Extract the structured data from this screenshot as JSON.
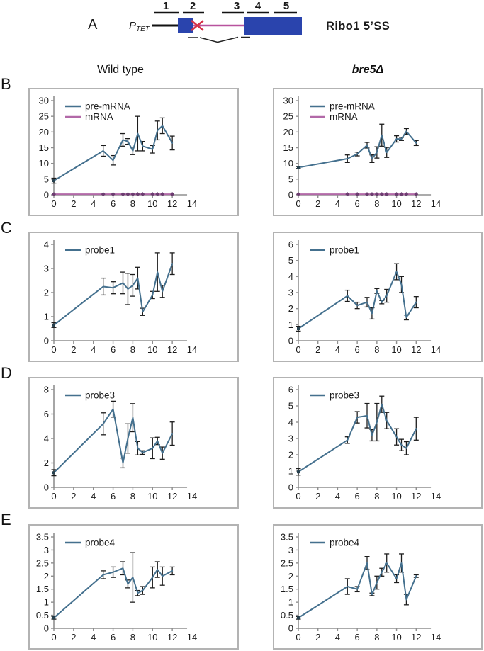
{
  "panel_a": {
    "label": "A",
    "promoter": {
      "main": "P",
      "sub": "TET"
    },
    "probes": [
      "1",
      "2",
      "3",
      "4",
      "5"
    ],
    "gene_label": "Ribo1 5’SS"
  },
  "columns": {
    "left": "Wild type",
    "right": "bre5Δ"
  },
  "panel_rows": [
    "B",
    "C",
    "D",
    "E"
  ],
  "colors": {
    "series_blue": "#44708e",
    "series_purple": "#b269a8",
    "marker_purple": "#6c3c70",
    "marker_dark": "#27414f",
    "axis_gray": "#8f8f8f",
    "error_black": "#1c1c1c",
    "exon_blue": "#2a44ad",
    "intron_magenta": "#b8529e",
    "cross_red": "#d63248",
    "box_border": "#b3b3b3",
    "text_dark": "#1a1a1a"
  },
  "chart_data": [
    {
      "type": "line",
      "panel": "B",
      "genotype": "Wild type",
      "x": [
        0,
        5,
        6,
        7,
        7.5,
        8,
        8.5,
        9,
        10,
        10.5,
        11,
        12
      ],
      "series": [
        {
          "name": "pre-mRNA",
          "color_key": "series_blue",
          "marker": "start",
          "values": [
            4.5,
            14,
            11,
            17.5,
            17,
            14,
            19.5,
            15.5,
            14.5,
            20.5,
            22,
            16.5
          ],
          "errors": [
            0.8,
            1.7,
            1.5,
            2.0,
            0.9,
            1.2,
            5.5,
            1.5,
            1.2,
            3.0,
            2.5,
            2.2
          ]
        },
        {
          "name": "mRNA",
          "color_key": "series_purple",
          "marker": "diamond",
          "values": [
            0.2,
            0.2,
            0.2,
            0.2,
            0.2,
            0.2,
            0.2,
            0.2,
            0.2,
            0.2,
            0.2,
            0.2
          ],
          "errors": [
            0,
            0,
            0,
            0,
            0,
            0,
            0,
            0,
            0,
            0,
            0,
            0
          ]
        }
      ],
      "xlim": [
        0,
        14
      ],
      "ylim": [
        0,
        30
      ],
      "xticks": [
        0,
        2,
        4,
        6,
        8,
        10,
        12,
        14
      ],
      "yticks": [
        0,
        5,
        10,
        15,
        20,
        25,
        30
      ],
      "legend_position": "top-left",
      "grid": false
    },
    {
      "type": "line",
      "panel": "B",
      "genotype": "bre5Δ",
      "x": [
        0,
        5,
        6,
        7,
        7.5,
        8,
        8.5,
        9,
        10,
        10.5,
        11,
        12
      ],
      "series": [
        {
          "name": "pre-mRNA",
          "color_key": "series_blue",
          "marker": "start",
          "values": [
            8.7,
            11.5,
            13,
            15.8,
            11.5,
            13.5,
            19,
            13.5,
            17.8,
            17.8,
            20.2,
            16.5
          ],
          "errors": [
            0.3,
            1.2,
            0.6,
            0.9,
            1.2,
            1.8,
            3.5,
            1.6,
            1.0,
            0.5,
            0.9,
            0.8
          ]
        },
        {
          "name": "mRNA",
          "color_key": "series_purple",
          "marker": "diamond",
          "values": [
            0.2,
            0.2,
            0.2,
            0.2,
            0.2,
            0.2,
            0.2,
            0.2,
            0.2,
            0.2,
            0.2,
            0.2
          ],
          "errors": [
            0,
            0,
            0,
            0,
            0,
            0,
            0,
            0,
            0,
            0,
            0,
            0
          ]
        }
      ],
      "xlim": [
        0,
        14
      ],
      "ylim": [
        0,
        30
      ],
      "xticks": [
        0,
        2,
        4,
        6,
        8,
        10,
        12,
        14
      ],
      "yticks": [
        0,
        5,
        10,
        15,
        20,
        25,
        30
      ],
      "legend_position": "top-left",
      "grid": false
    },
    {
      "type": "line",
      "panel": "C",
      "genotype": "Wild type",
      "x": [
        0,
        5,
        6,
        7,
        7.5,
        8,
        8.5,
        9,
        10,
        10.5,
        11,
        12
      ],
      "series": [
        {
          "name": "probe1",
          "color_key": "series_blue",
          "marker": "start",
          "values": [
            0.65,
            2.25,
            2.2,
            2.4,
            2.15,
            2.3,
            2.6,
            1.2,
            1.9,
            2.85,
            2.05,
            3.2
          ],
          "errors": [
            0.1,
            0.35,
            0.25,
            0.45,
            0.65,
            0.45,
            0.45,
            0.15,
            0.15,
            0.8,
            0.25,
            0.45
          ]
        }
      ],
      "xlim": [
        0,
        14
      ],
      "ylim": [
        0,
        4
      ],
      "xticks": [
        0,
        2,
        4,
        6,
        8,
        10,
        12,
        14
      ],
      "yticks": [
        0,
        1,
        2,
        3,
        4
      ],
      "legend_position": "top-left",
      "grid": false
    },
    {
      "type": "line",
      "panel": "C",
      "genotype": "bre5Δ",
      "x": [
        0,
        5,
        6,
        7,
        7.5,
        8,
        8.5,
        9,
        10,
        10.5,
        11,
        12
      ],
      "series": [
        {
          "name": "probe1",
          "color_key": "series_blue",
          "marker": "start",
          "values": [
            0.75,
            2.8,
            2.2,
            2.4,
            1.7,
            3.1,
            2.4,
            2.8,
            4.3,
            3.5,
            1.45,
            2.4
          ],
          "errors": [
            0.15,
            0.35,
            0.2,
            0.3,
            0.35,
            0.15,
            0.1,
            0.4,
            0.5,
            0.5,
            0.15,
            0.35
          ]
        }
      ],
      "xlim": [
        0,
        14
      ],
      "ylim": [
        0,
        6
      ],
      "xticks": [
        0,
        2,
        4,
        6,
        8,
        10,
        12,
        14
      ],
      "yticks": [
        0,
        1,
        2,
        3,
        4,
        5,
        6
      ],
      "legend_position": "top-left",
      "grid": false
    },
    {
      "type": "line",
      "panel": "D",
      "genotype": "Wild type",
      "x": [
        0,
        5,
        6,
        7,
        7.5,
        8,
        8.5,
        9,
        10,
        10.5,
        11,
        12
      ],
      "series": [
        {
          "name": "probe3",
          "color_key": "series_blue",
          "marker": "start",
          "values": [
            1.2,
            5.2,
            6.4,
            2.0,
            4.0,
            5.7,
            3.2,
            2.85,
            3.2,
            3.8,
            2.8,
            4.4
          ],
          "errors": [
            0.25,
            0.9,
            0.65,
            0.4,
            1.2,
            1.15,
            0.55,
            0.15,
            0.85,
            0.3,
            0.5,
            0.95
          ]
        }
      ],
      "xlim": [
        0,
        14
      ],
      "ylim": [
        0,
        8
      ],
      "xticks": [
        0,
        2,
        4,
        6,
        8,
        10,
        12,
        14
      ],
      "yticks": [
        0,
        2,
        4,
        6,
        8
      ],
      "legend_position": "top-left",
      "grid": false
    },
    {
      "type": "line",
      "panel": "D",
      "genotype": "bre5Δ",
      "x": [
        0,
        5,
        6,
        7,
        7.5,
        8,
        8.5,
        9,
        10,
        10.5,
        11,
        12
      ],
      "series": [
        {
          "name": "probe3",
          "color_key": "series_blue",
          "marker": "start",
          "values": [
            0.95,
            2.9,
            4.3,
            4.4,
            3.2,
            4.0,
            5.1,
            4.1,
            3.1,
            2.6,
            2.4,
            3.6
          ],
          "errors": [
            0.2,
            0.2,
            0.35,
            0.75,
            0.35,
            1.15,
            0.5,
            0.5,
            0.5,
            0.35,
            0.4,
            0.7
          ]
        }
      ],
      "xlim": [
        0,
        14
      ],
      "ylim": [
        0,
        6
      ],
      "xticks": [
        0,
        2,
        4,
        6,
        8,
        10,
        12,
        14
      ],
      "yticks": [
        0,
        1,
        2,
        3,
        4,
        5,
        6
      ],
      "legend_position": "top-left",
      "grid": false
    },
    {
      "type": "line",
      "panel": "E",
      "genotype": "Wild type",
      "x": [
        0,
        5,
        6,
        7,
        7.5,
        8,
        8.5,
        9,
        10,
        10.5,
        11,
        12
      ],
      "series": [
        {
          "name": "probe4",
          "color_key": "series_blue",
          "marker": "start",
          "values": [
            0.4,
            2.05,
            2.15,
            2.3,
            1.7,
            1.95,
            1.35,
            1.45,
            1.95,
            2.25,
            2.0,
            2.2
          ],
          "errors": [
            0.05,
            0.15,
            0.2,
            0.25,
            0.15,
            0.95,
            0.1,
            0.15,
            0.4,
            0.3,
            0.35,
            0.15
          ]
        }
      ],
      "xlim": [
        0,
        14
      ],
      "ylim": [
        0,
        3.5
      ],
      "xticks": [
        0,
        2,
        4,
        6,
        8,
        10,
        12,
        14
      ],
      "yticks": [
        0,
        0.5,
        1,
        1.5,
        2,
        2.5,
        3,
        3.5
      ],
      "legend_position": "top-left",
      "grid": false
    },
    {
      "type": "line",
      "panel": "E",
      "genotype": "bre5Δ",
      "x": [
        0,
        5,
        6,
        7,
        7.5,
        8,
        8.5,
        9,
        10,
        10.5,
        11,
        12
      ],
      "series": [
        {
          "name": "probe4",
          "color_key": "series_blue",
          "marker": "start",
          "values": [
            0.4,
            1.6,
            1.5,
            2.5,
            1.3,
            1.75,
            2.15,
            2.5,
            1.9,
            2.5,
            1.1,
            2.0
          ],
          "errors": [
            0.05,
            0.3,
            0.1,
            0.25,
            0.05,
            0.25,
            0.15,
            0.35,
            0.15,
            0.35,
            0.2,
            0.05
          ]
        }
      ],
      "xlim": [
        0,
        14
      ],
      "ylim": [
        0,
        3.5
      ],
      "xticks": [
        0,
        2,
        4,
        6,
        8,
        10,
        12,
        14
      ],
      "yticks": [
        0,
        0.5,
        1,
        1.5,
        2,
        2.5,
        3,
        3.5
      ],
      "legend_position": "top-left",
      "grid": false
    }
  ]
}
